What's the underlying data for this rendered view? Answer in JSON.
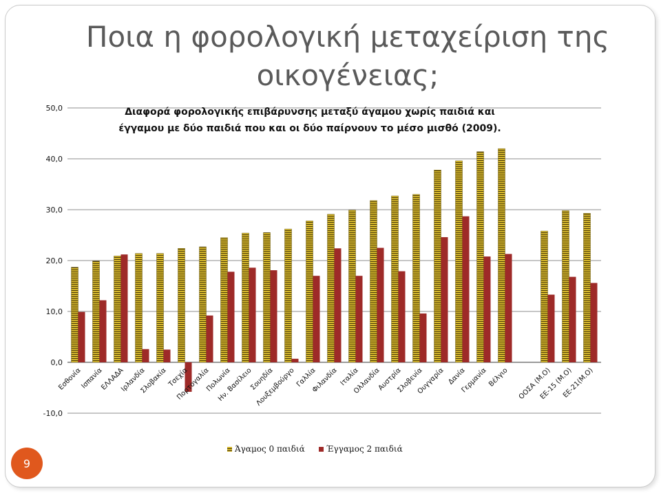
{
  "slide": {
    "title_line1": "Ποια η φορολογική μεταχείριση της",
    "title_line2": "οικογένειας;",
    "page_number": "9"
  },
  "colors": {
    "single": "#d4b62c",
    "single_stripe": "#4a3a08",
    "married": "#9e2a28",
    "grid": "#8c8c8c"
  },
  "chart_data": {
    "type": "bar",
    "title_line1": "Διαφορά φορολογικής επιβάρυνσης μεταξύ άγαμου χωρίς παιδιά και",
    "title_line2": "έγγαμου με δύο παιδιά που και οι δύο παίρνουν το μέσο μισθό (2009).",
    "categories": [
      "Εσθονία",
      "Ισπανία",
      "ΕΛΛΑΔΑ",
      "Ιρλανδία",
      "Σλοβακία",
      "Τσεχία",
      "Πορτογαλία",
      "Πολωνία",
      "Ην. Βασίλειο",
      "Σουηδία",
      "Λουξεμβούργο",
      "Γαλλία",
      "Φιλανδία",
      "Ιταλία",
      "Ολλανδία",
      "Αυστρία",
      "Σλοβενία",
      "Ουγγαρία",
      "Δανία",
      "Γερμανία",
      "Βέλγιο",
      "",
      "ΟΟΣΑ (Μ.Ο)",
      "ΕΕ-15 (Μ.Ο)",
      "ΕΕ-21(Μ.Ο)"
    ],
    "series": [
      {
        "name": "Άγαμος 0 παιδιά",
        "values": [
          18.7,
          19.9,
          20.9,
          21.4,
          21.4,
          22.4,
          22.7,
          24.5,
          25.4,
          25.5,
          26.2,
          27.8,
          29.1,
          29.9,
          31.8,
          32.7,
          33.0,
          37.8,
          39.6,
          41.4,
          42.0,
          null,
          25.8,
          29.8,
          29.3
        ]
      },
      {
        "name": "Έγγαμος 2 παιδιά",
        "values": [
          9.9,
          12.2,
          21.2,
          2.6,
          2.5,
          -5.8,
          9.2,
          17.8,
          18.6,
          18.1,
          0.7,
          17.0,
          22.4,
          17.0,
          22.5,
          17.9,
          9.6,
          24.6,
          28.7,
          20.8,
          21.3,
          null,
          13.3,
          16.8,
          15.6
        ]
      }
    ],
    "ylim": [
      -10,
      50
    ],
    "yticks": [
      "-10,0",
      "0,0",
      "10,0",
      "20,0",
      "30,0",
      "40,0",
      "50,0"
    ],
    "grid": true,
    "legend_position": "bottom"
  }
}
